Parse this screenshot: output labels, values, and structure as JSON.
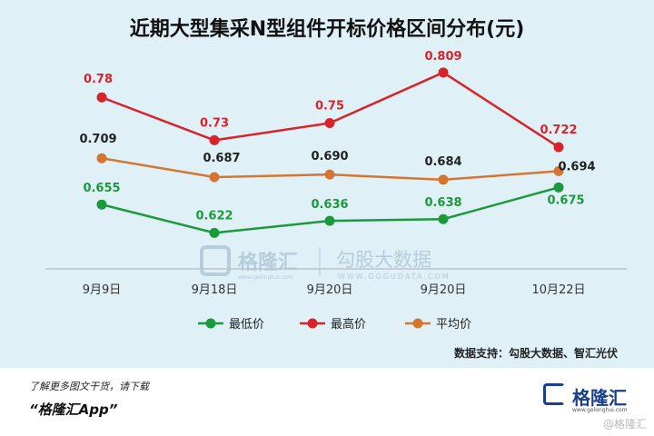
{
  "title": "近期大型集采N型组件开标价格区间分布(元)",
  "chart_data": {
    "type": "line",
    "categories": [
      "9月9日",
      "9月18日",
      "9月20日",
      "9月20日",
      "10月22日"
    ],
    "ylim": [
      0.58,
      0.83
    ],
    "grid": false,
    "legend_position": "bottom",
    "series": [
      {
        "name": "最低价",
        "color": "#1a9a3a",
        "values": [
          0.655,
          0.622,
          0.636,
          0.638,
          0.675
        ],
        "labels": [
          "0.655",
          "0.622",
          "0.636",
          "0.638",
          "0.675"
        ]
      },
      {
        "name": "最高价",
        "color": "#d9232a",
        "values": [
          0.78,
          0.73,
          0.75,
          0.809,
          0.722
        ],
        "labels": [
          "0.78",
          "0.73",
          "0.75",
          "0.809",
          "0.722"
        ]
      },
      {
        "name": "平均价",
        "color": "#d4762f",
        "values": [
          0.709,
          0.687,
          0.69,
          0.684,
          0.694
        ],
        "labels": [
          "0.709",
          "0.687",
          "0.690",
          "0.684",
          "0.694"
        ]
      }
    ]
  },
  "watermark": {
    "brand": "格隆汇",
    "brand_url": "www.gelonghui.com",
    "partner": "勾股大数据",
    "partner_url": "WWW.GOGUDATA.COM"
  },
  "source_note": "数据支持：勾股大数据、智汇光伏",
  "footer": {
    "promo_line": "了解更多图文干货，请下载",
    "promo_app": "“格隆汇App”",
    "logo_text": "格隆汇",
    "logo_url": "www.gelonghui.com",
    "watermark": "@格隆汇"
  }
}
